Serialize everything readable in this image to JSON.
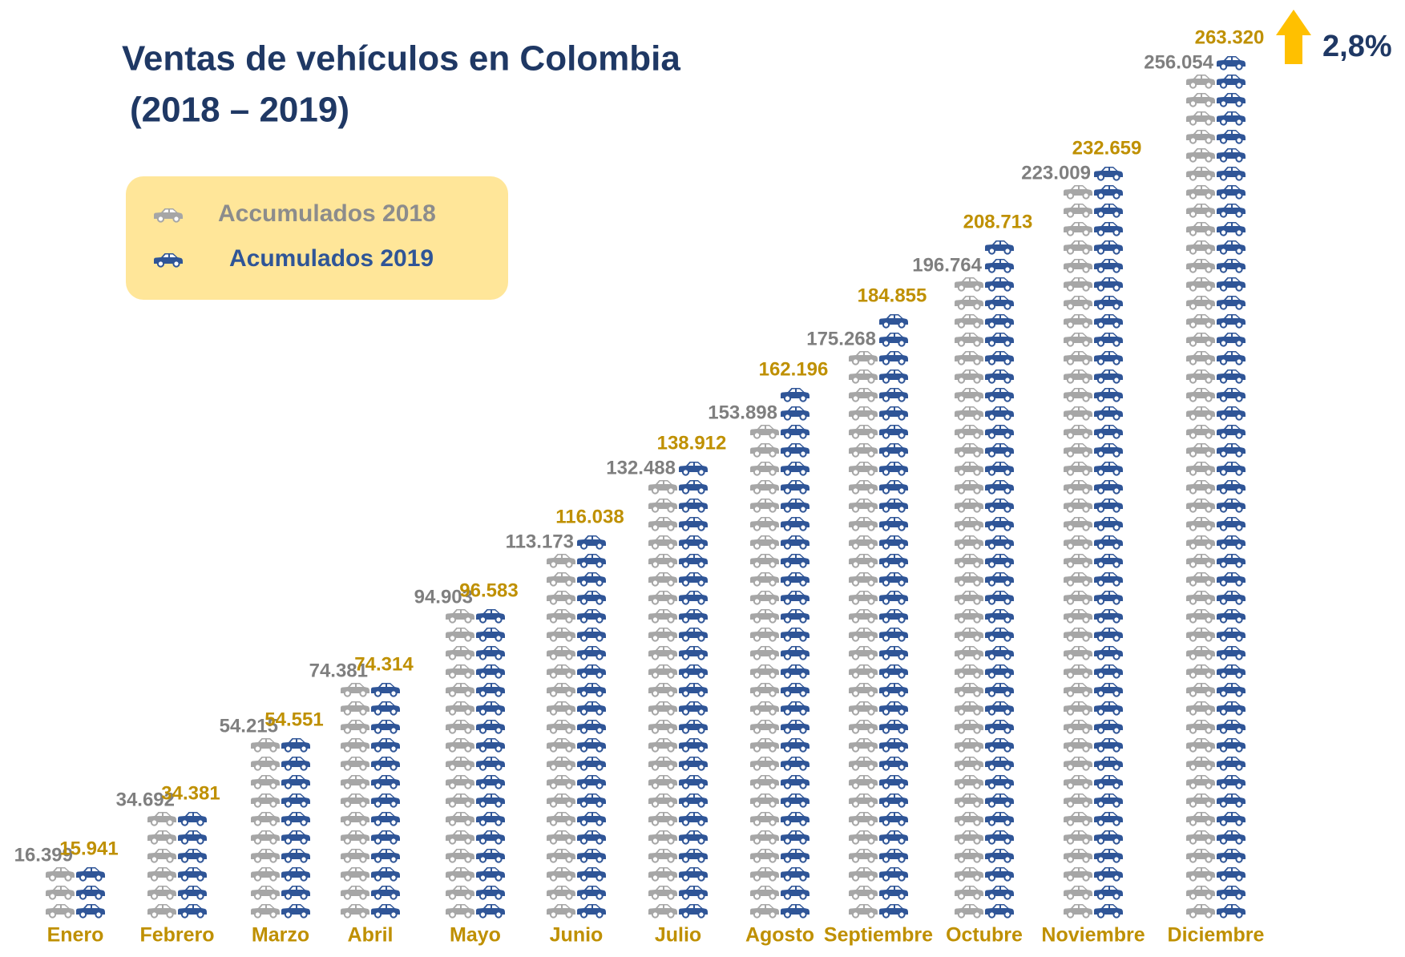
{
  "chart_data": {
    "type": "pictograph",
    "title": [
      "Ventas de vehículos en Colombia",
      "(2018 – 2019)"
    ],
    "categories": [
      "Enero",
      "Febrero",
      "Marzo",
      "Abril",
      "Mayo",
      "Junio",
      "Julio",
      "Agosto",
      "Septiembre",
      "Octubre",
      "Noviembre",
      "Diciembre"
    ],
    "series": [
      {
        "name": "Accumulados 2018",
        "color": "#a6a6a6",
        "label_color": "#7f7f7f",
        "values": [
          16399,
          34692,
          54215,
          74381,
          94903,
          113173,
          132488,
          153898,
          175268,
          196764,
          223009,
          256054
        ],
        "value_labels": [
          "16.399",
          "34.692",
          "54.215",
          "74.381",
          "94.903",
          "113.173",
          "132.488",
          "153.898",
          "175.268",
          "196.764",
          "223.009",
          "256.054"
        ]
      },
      {
        "name": "Acumulados 2019",
        "color": "#2f5597",
        "label_color": "#bf9000",
        "values": [
          15941,
          34381,
          54551,
          74314,
          96583,
          116038,
          138912,
          162196,
          184855,
          208713,
          232659,
          263320
        ],
        "value_labels": [
          "15.941",
          "34.381",
          "54.551",
          "74.314",
          "96.583",
          "116.038",
          "138.912",
          "162.196",
          "184.855",
          "208.713",
          "232.659",
          "263.320"
        ]
      }
    ],
    "annotation": "2,8%",
    "legend_position": "upper left"
  }
}
